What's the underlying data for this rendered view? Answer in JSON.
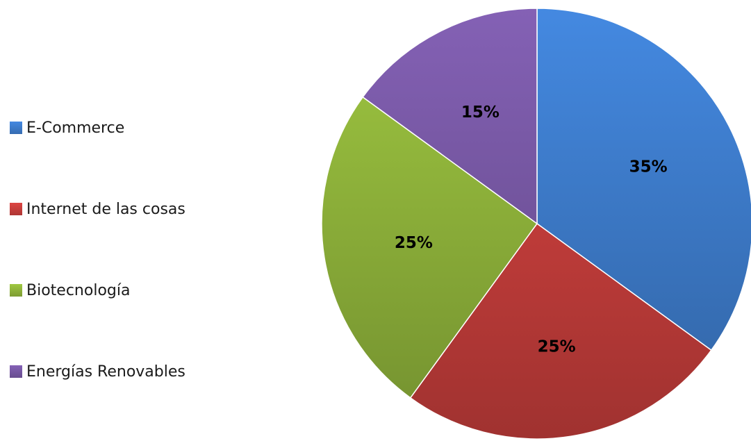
{
  "chart_data": {
    "type": "pie",
    "title": "",
    "legend_position": "left",
    "slices": [
      {
        "name": "E-Commerce",
        "value": 35,
        "label": "35%",
        "color": "#3f7fd0"
      },
      {
        "name": "Internet de las cosas",
        "value": 25,
        "label": "25%",
        "color": "#cd403d"
      },
      {
        "name": "Biotecnología",
        "value": 25,
        "label": "25%",
        "color": "#93b83c"
      },
      {
        "name": "Energías Renovables",
        "value": 15,
        "label": "15%",
        "color": "#7a5aa8"
      }
    ]
  }
}
